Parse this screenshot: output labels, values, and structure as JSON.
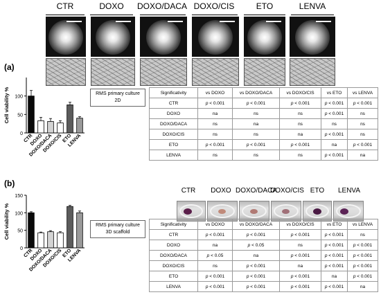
{
  "columns": [
    "CTR",
    "DOXO",
    "DOXO/DACA",
    "DOXO/CIS",
    "ETO",
    "LENVA"
  ],
  "panel_a": {
    "label": "(a)",
    "box_label_line1": "RMS primary culture",
    "box_label_line2": "2D",
    "table": {
      "headers": [
        "Significativity",
        "vs DOXO",
        "vs DOXO/DACA",
        "vs DOXO/CIS",
        "vs ETO",
        "vs LENVA"
      ],
      "rows": [
        [
          "CTR",
          "p < 0.001",
          "p < 0.001",
          "p < 0.001",
          "p < 0.001",
          "p < 0.001"
        ],
        [
          "DOXO",
          "na",
          "ns",
          "ns",
          "p < 0.001",
          "ns"
        ],
        [
          "DOXO/DACA",
          "ns",
          "na",
          "ns",
          "ns",
          "ns"
        ],
        [
          "DOXO/CIS",
          "ns",
          "ns",
          "na",
          "p < 0.001",
          "ns"
        ],
        [
          "ETO",
          "p < 0.001",
          "p < 0.001",
          "p < 0.001",
          "na",
          "p < 0.001"
        ],
        [
          "LENVA",
          "ns",
          "ns",
          "ns",
          "p < 0.001",
          "na"
        ]
      ]
    }
  },
  "panel_b": {
    "label": "(b)",
    "box_label_line1": "RMS primary culture",
    "box_label_line2": "3D scaffold",
    "dish_labels": [
      "CTR",
      "DOXO",
      "DOXO/DACA",
      "DOXO/CIS",
      "ETO",
      "LENVA"
    ],
    "table": {
      "headers": [
        "Significativity",
        "vs DOXO",
        "vs DOXO/DACA",
        "vs DOXO/CIS",
        "vs ETO",
        "vs LENVA"
      ],
      "rows": [
        [
          "CTR",
          "p < 0.001",
          "p < 0.001",
          "p < 0.001",
          "p < 0.001",
          "ns"
        ],
        [
          "DOXO",
          "na",
          "p < 0.05",
          "ns",
          "p < 0.001",
          "p < 0.001"
        ],
        [
          "DOXO/DACA",
          "p < 0.05",
          "na",
          "p < 0.001",
          "p < 0.001",
          "p < 0.001"
        ],
        [
          "DOXO/CIS",
          "ns",
          "p < 0.001",
          "na",
          "p < 0.001",
          "p < 0.001"
        ],
        [
          "ETO",
          "p < 0.001",
          "p < 0.001",
          "p < 0.001",
          "na",
          "p < 0.001"
        ],
        [
          "LENVA",
          "p < 0.001",
          "p < 0.001",
          "p < 0.001",
          "p < 0.001",
          "na"
        ]
      ]
    }
  },
  "chart_data": [
    {
      "type": "bar",
      "ylabel": "Cell viability %",
      "categories": [
        "CTR",
        "DOXO",
        "DOXO/DACA",
        "DOXO/CIS",
        "ETO",
        "LENVA"
      ],
      "values": [
        100,
        33,
        31,
        27,
        76,
        40
      ],
      "errors": [
        15,
        9,
        8,
        6,
        7,
        4
      ],
      "yticks": [
        0,
        50,
        100
      ],
      "ylim": [
        0,
        150
      ],
      "colors": [
        "#0a0a0a",
        "#ffffff",
        "#d3d3d3",
        "#ffffff",
        "#5c5c5c",
        "#9a9a9a"
      ]
    },
    {
      "type": "bar",
      "ylabel": "Cell viability %",
      "categories": [
        "CTR",
        "DOXO",
        "DOXO/DACA",
        "DOXO/CIS",
        "ETO",
        "LENVA"
      ],
      "values": [
        100,
        43,
        46,
        43,
        118,
        100
      ],
      "errors": [
        3,
        2,
        3,
        3,
        3,
        5
      ],
      "yticks": [
        0,
        50,
        100,
        150
      ],
      "ylim": [
        0,
        150
      ],
      "colors": [
        "#0a0a0a",
        "#ffffff",
        "#d3d3d3",
        "#ffffff",
        "#5c5c5c",
        "#9a9a9a"
      ]
    }
  ],
  "dish_colors": [
    {
      "blob": "#5a1f4a"
    },
    {
      "blob": "#c08a7a"
    },
    {
      "blob": "#b07a74"
    },
    {
      "blob": "#a07078"
    },
    {
      "blob": "#4a1a44"
    },
    {
      "blob": "#5c2456"
    }
  ]
}
